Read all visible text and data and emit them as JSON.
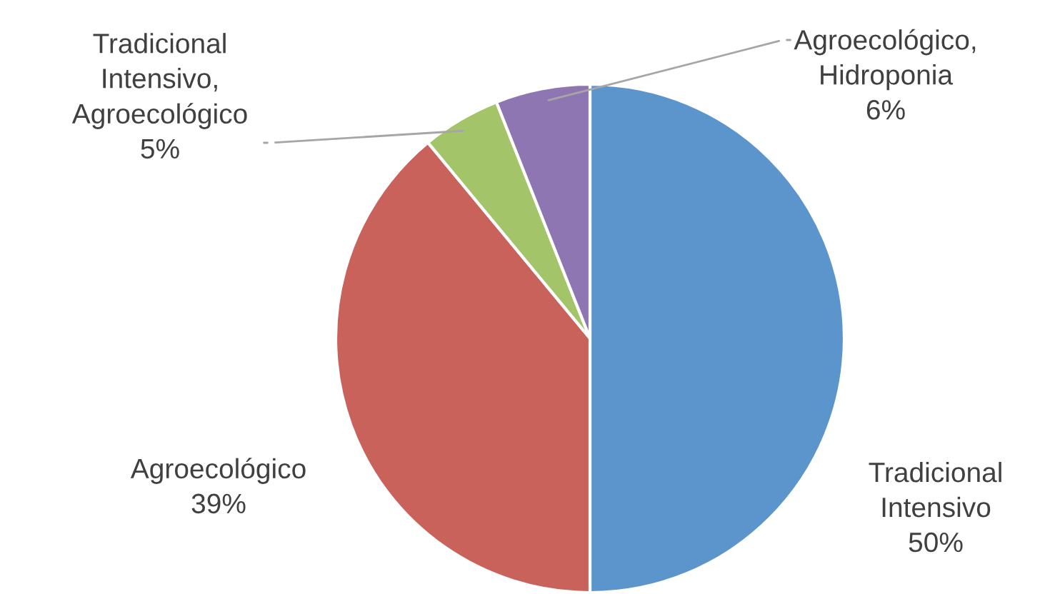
{
  "chart_data": {
    "type": "pie",
    "categories": [
      "Tradicional Intensivo",
      "Agroecológico",
      "Tradicional Intensivo, Agroecológico",
      "Agroecológico, Hidroponia"
    ],
    "values": [
      50,
      39,
      5,
      6
    ],
    "colors": [
      "#5b95cc",
      "#c8625a",
      "#a4c46a",
      "#8d76b2"
    ],
    "value_labels": [
      "50%",
      "39%",
      "5%",
      "6%"
    ],
    "legend": false
  }
}
